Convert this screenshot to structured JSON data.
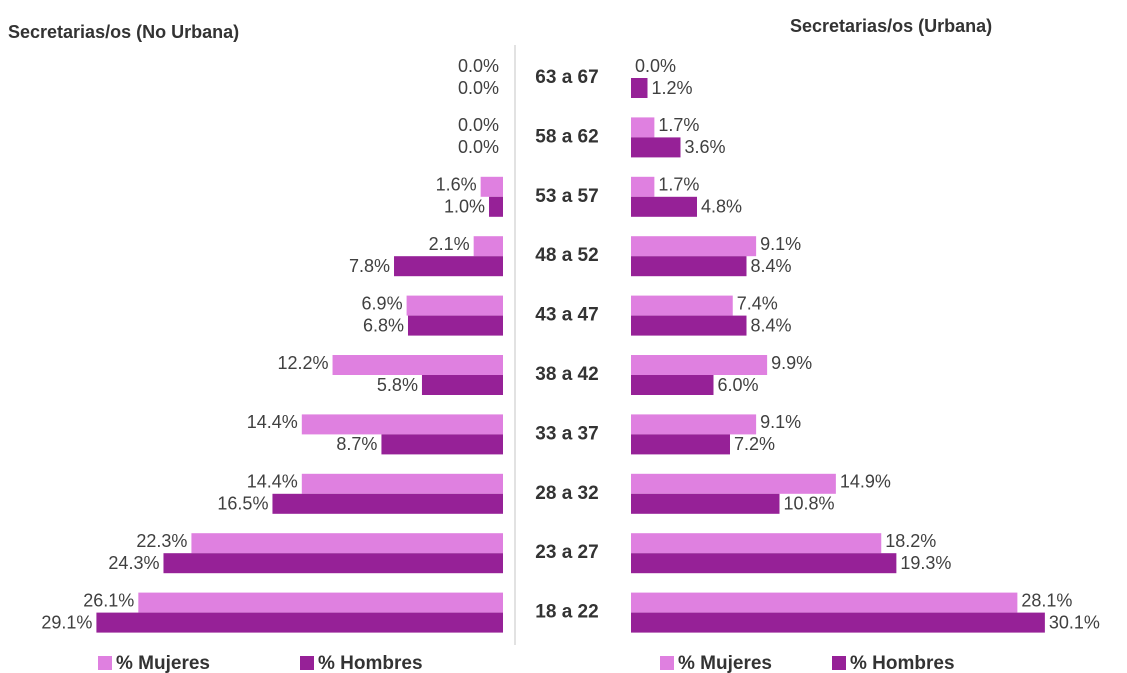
{
  "chart_data": [
    {
      "type": "bar",
      "orientation": "horizontal",
      "direction": "left",
      "title": "Secretarias/os (No Urbana)",
      "categories": [
        "63 a 67",
        "58 a 62",
        "53 a 57",
        "48 a 52",
        "43 a 47",
        "38 a 42",
        "33 a 37",
        "28 a 32",
        "23 a 27",
        "18 a 22"
      ],
      "xlim": [
        0,
        36
      ],
      "series": [
        {
          "name": "% Mujeres",
          "color": "#df80e0",
          "values": [
            0.0,
            0.0,
            1.6,
            2.1,
            6.9,
            12.2,
            14.4,
            14.4,
            22.3,
            26.1
          ],
          "value_labels": [
            "0.0%",
            "0.0%",
            "1.6%",
            "2.1%",
            "6.9%",
            "12.2%",
            "14.4%",
            "14.4%",
            "22.3%",
            "26.1%"
          ]
        },
        {
          "name": "% Hombres",
          "color": "#962197",
          "values": [
            0.0,
            0.0,
            1.0,
            7.8,
            6.8,
            5.8,
            8.7,
            16.5,
            24.3,
            29.1
          ],
          "value_labels": [
            "0.0%",
            "0.0%",
            "1.0%",
            "7.8%",
            "6.8%",
            "5.8%",
            "8.7%",
            "16.5%",
            "24.3%",
            "29.1%"
          ]
        }
      ]
    },
    {
      "type": "bar",
      "orientation": "horizontal",
      "direction": "right",
      "title": "Secretarias/os (Urbana)",
      "xlim": [
        0,
        36
      ],
      "series": [
        {
          "name": "% Mujeres",
          "color": "#df80e0",
          "values": [
            0.0,
            1.7,
            1.7,
            9.1,
            7.4,
            9.9,
            9.1,
            14.9,
            18.2,
            28.1
          ],
          "value_labels": [
            "0.0%",
            "1.7%",
            "1.7%",
            "9.1%",
            "7.4%",
            "9.9%",
            "9.1%",
            "14.9%",
            "18.2%",
            "28.1%"
          ]
        },
        {
          "name": "% Hombres",
          "color": "#962197",
          "values": [
            1.2,
            3.6,
            4.8,
            8.4,
            8.4,
            6.0,
            7.2,
            10.8,
            19.3,
            30.1
          ],
          "value_labels": [
            "1.2%",
            "3.6%",
            "4.8%",
            "8.4%",
            "8.4%",
            "6.0%",
            "7.2%",
            "10.8%",
            "19.3%",
            "30.1%"
          ]
        }
      ]
    }
  ]
}
